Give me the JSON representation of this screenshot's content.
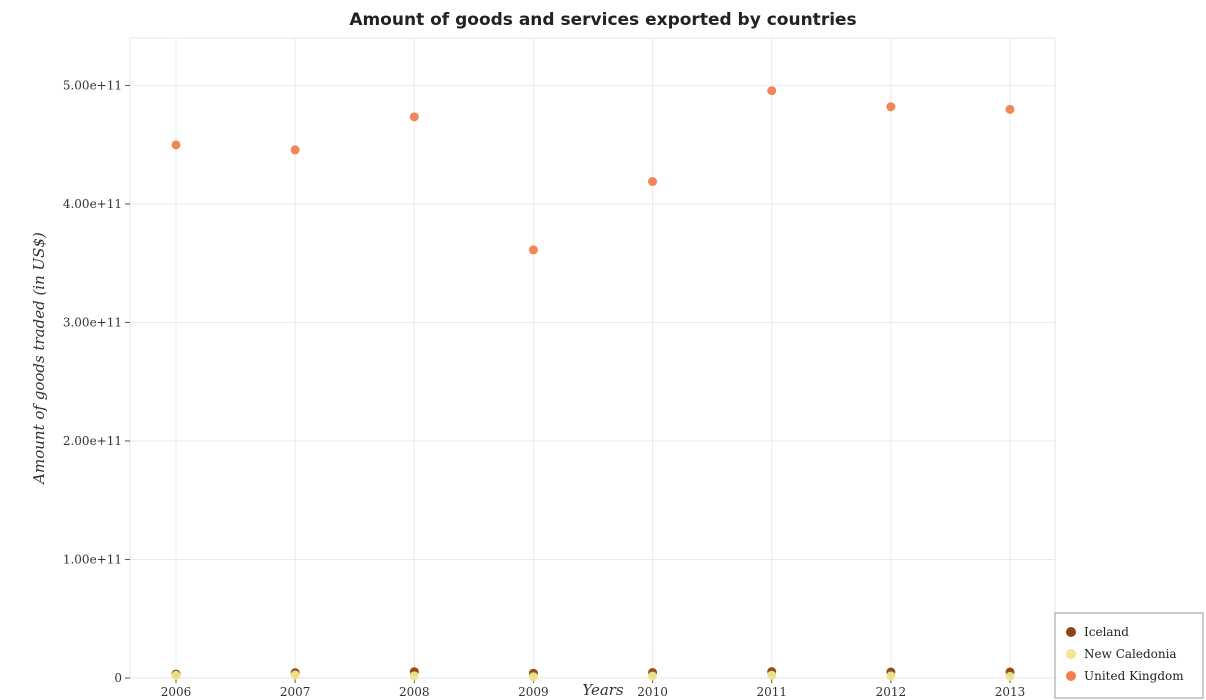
{
  "chart_data": {
    "type": "scatter",
    "title": "Amount of goods and services exported by countries",
    "xlabel": "Years",
    "ylabel": "Amount of goods traded (in US$)",
    "x": [
      "2006",
      "2007",
      "2008",
      "2009",
      "2010",
      "2011",
      "2012",
      "2013"
    ],
    "ylim": [
      0,
      540000000000
    ],
    "yticks": [
      0,
      100000000000,
      200000000000,
      300000000000,
      400000000000,
      500000000000
    ],
    "ytick_labels": [
      "0",
      "1.00e+11",
      "2.00e+11",
      "3.00e+11",
      "4.00e+11",
      "5.00e+11"
    ],
    "grid": true,
    "legend_position": "bottom-right",
    "series": [
      {
        "name": "Iceland",
        "color": "#8b4513",
        "values": [
          3300000000,
          4500000000,
          5300000000,
          4050000000,
          4600000000,
          5350000000,
          5050000000,
          5100000000
        ]
      },
      {
        "name": "New Caledonia",
        "color": "#f0e68c",
        "values": [
          2200000000,
          2500000000,
          1800000000,
          1050000000,
          1600000000,
          2300000000,
          1700000000,
          1350000000
        ]
      },
      {
        "name": "United Kingdom",
        "color": "#f08050",
        "values": [
          449800000000,
          445600000000,
          473500000000,
          361200000000,
          418900000000,
          495500000000,
          482000000000,
          479800000000
        ]
      }
    ]
  }
}
